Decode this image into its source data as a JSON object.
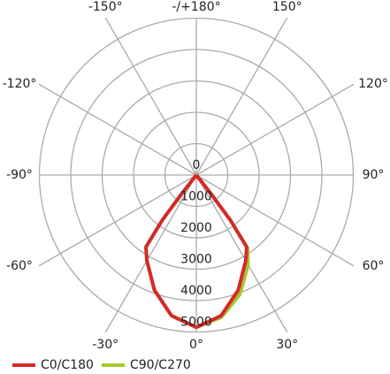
{
  "chart_data": {
    "type": "polar",
    "theta": [
      -40,
      -38,
      -37,
      -35,
      -30,
      -20,
      -10,
      0,
      10,
      20,
      30,
      35,
      37,
      38,
      40
    ],
    "series": [
      {
        "name": "C0/C180",
        "color": "#d42a2a",
        "values": [
          0,
          800,
          1800,
          2800,
          3150,
          3900,
          4550,
          4850,
          4550,
          3900,
          3150,
          2800,
          1800,
          800,
          0
        ]
      },
      {
        "name": "C90/C270",
        "color": "#a5c82a",
        "values": [
          0,
          800,
          1800,
          2800,
          3150,
          3900,
          4550,
          4850,
          4600,
          4050,
          3300,
          2850,
          1800,
          800,
          0
        ]
      }
    ],
    "rlim": [
      0,
      5000
    ],
    "rticks": [
      0,
      1000,
      2000,
      3000,
      4000,
      5000
    ],
    "angle_ticks": [
      {
        "value": -150,
        "label": "-150°"
      },
      {
        "value": 180,
        "label": "-/+180°"
      },
      {
        "value": 150,
        "label": "150°"
      },
      {
        "value": -120,
        "label": "-120°"
      },
      {
        "value": 120,
        "label": "120°"
      },
      {
        "value": -90,
        "label": "-90°"
      },
      {
        "value": 90,
        "label": "90°"
      },
      {
        "value": -60,
        "label": "-60°"
      },
      {
        "value": 60,
        "label": "60°"
      },
      {
        "value": -30,
        "label": "-30°"
      },
      {
        "value": 0,
        "label": "0°"
      },
      {
        "value": 30,
        "label": "30°"
      }
    ]
  }
}
